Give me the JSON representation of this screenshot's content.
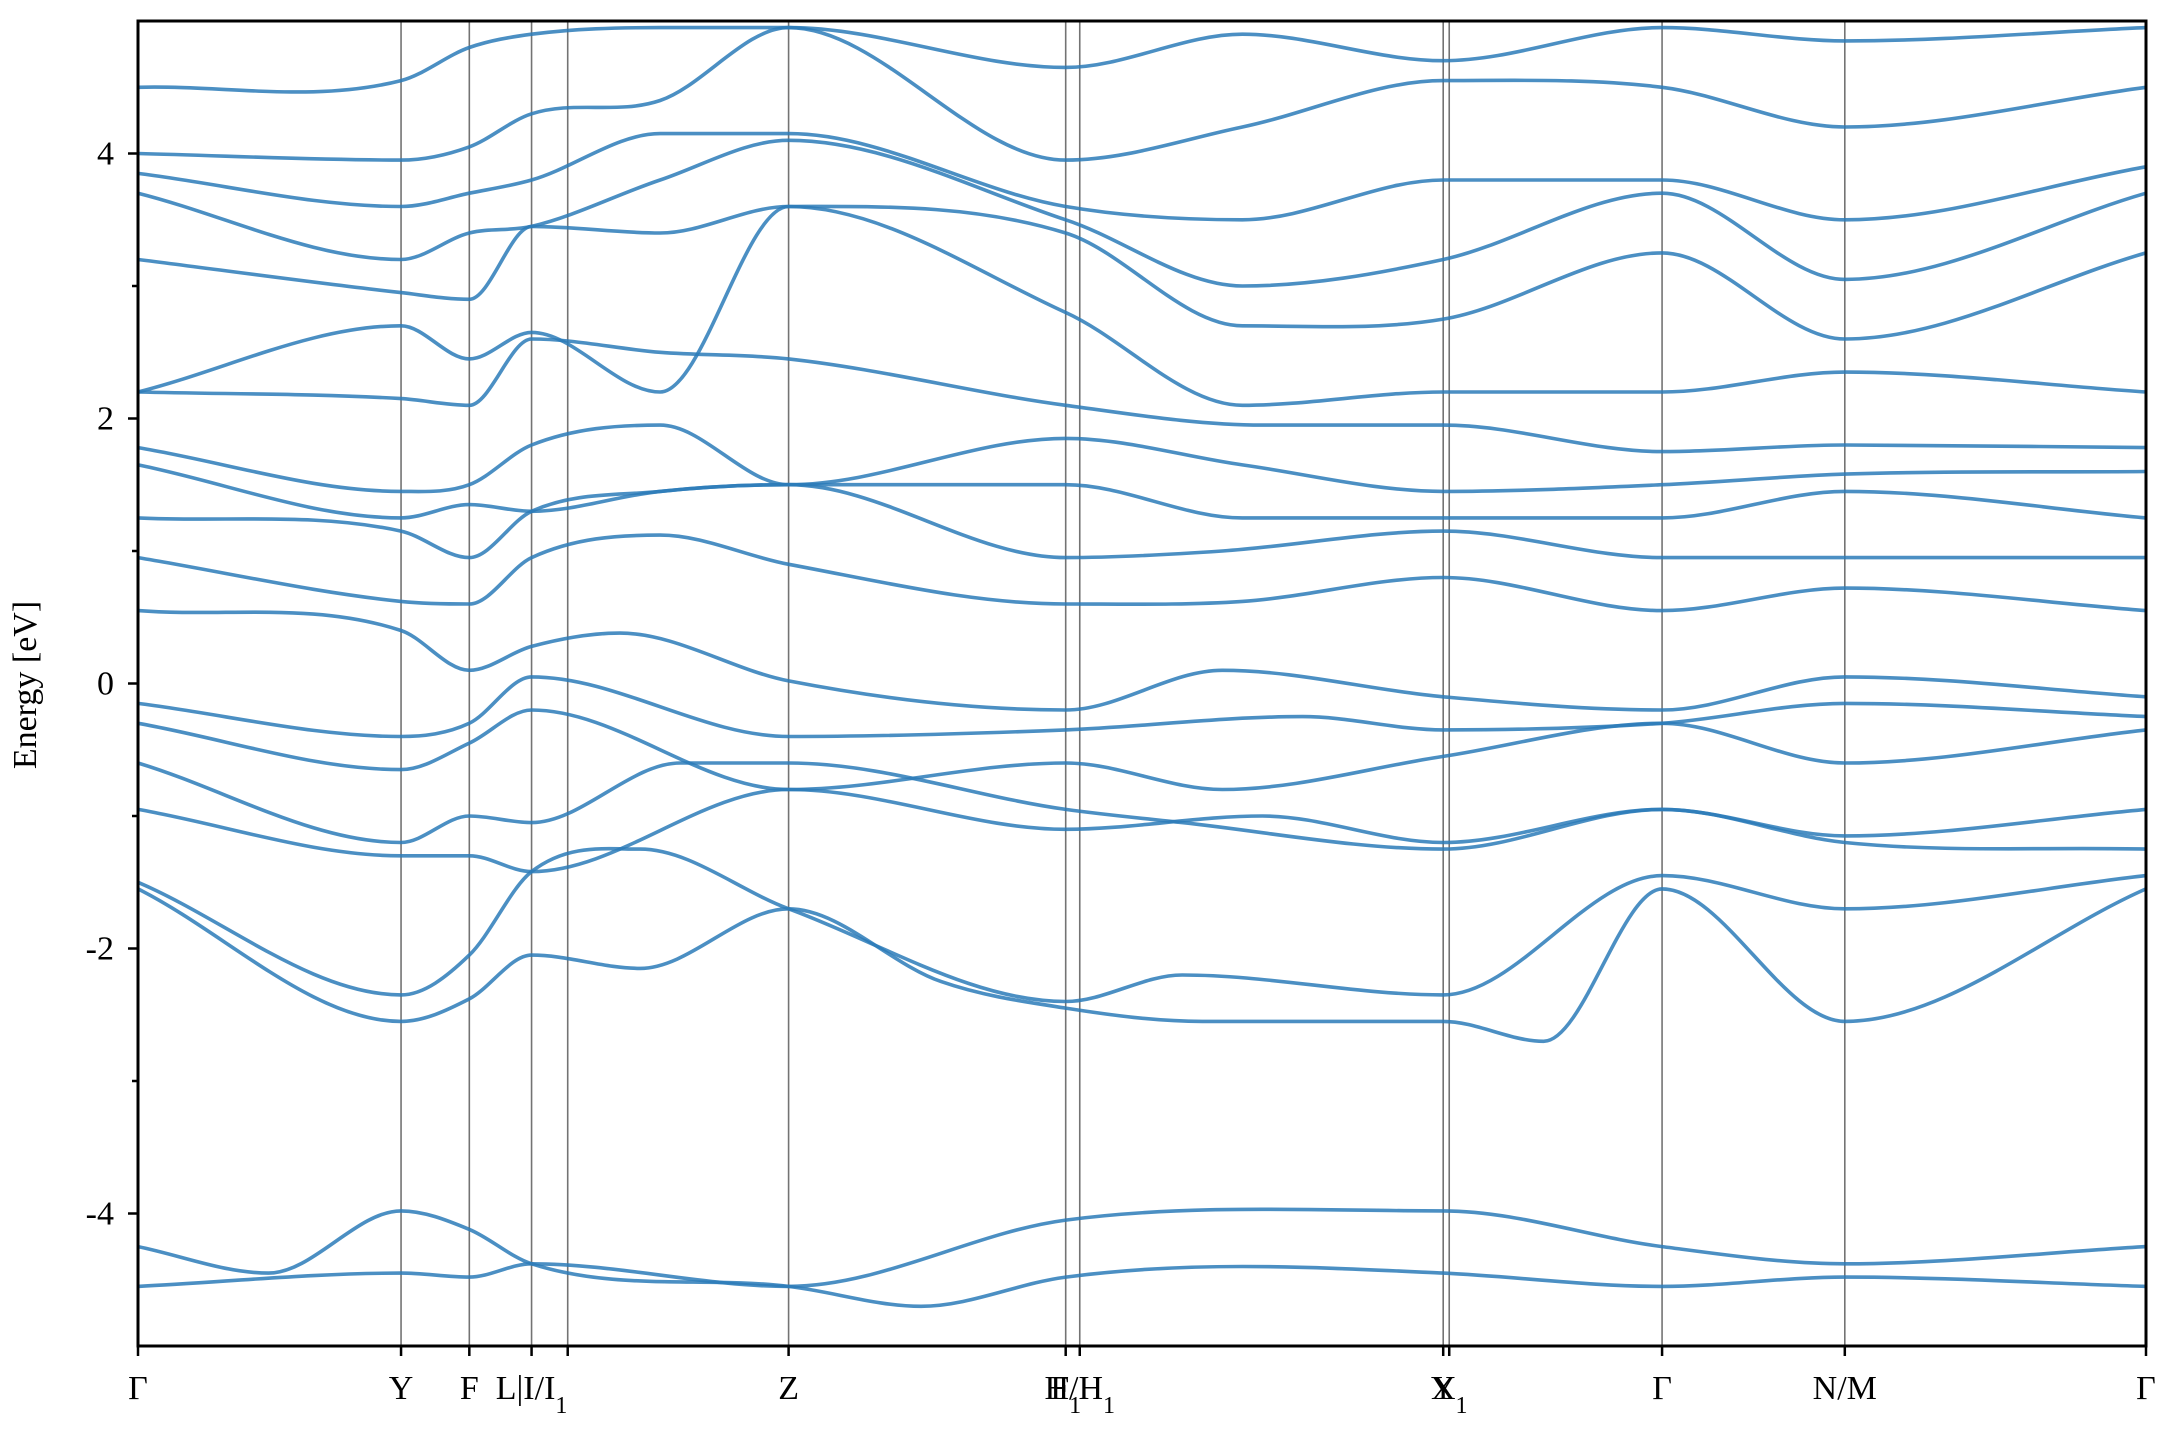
{
  "chart_data": {
    "type": "line",
    "title": "",
    "xlabel": "",
    "ylabel": "Energy [eV]",
    "ylim": [
      -5,
      5
    ],
    "xlim": [
      0,
      10
    ],
    "grid": false,
    "line_color": "#2b7bb9",
    "y_ticks": [
      {
        "value": -4,
        "label": "-4"
      },
      {
        "value": -2,
        "label": "-2"
      },
      {
        "value": 0,
        "label": "0"
      },
      {
        "value": 2,
        "label": "2"
      },
      {
        "value": 4,
        "label": "4"
      }
    ],
    "y_minor_ticks": [
      -3,
      -1,
      1,
      3
    ],
    "high_symmetry_points": [
      {
        "x": 0.0,
        "label": "Γ",
        "sub": ""
      },
      {
        "x": 1.31,
        "label": "Y",
        "sub": ""
      },
      {
        "x": 1.65,
        "label": "F",
        "sub": ""
      },
      {
        "x": 1.96,
        "label": "L|I/I",
        "sub": "1"
      },
      {
        "x": 2.14,
        "label": "",
        "sub": ""
      },
      {
        "x": 3.24,
        "label": "Z",
        "sub": ""
      },
      {
        "x": 4.62,
        "label": "F",
        "sub": "1"
      },
      {
        "x": 4.69,
        "label": "H/H",
        "sub": "1"
      },
      {
        "x": 6.5,
        "label": "Y",
        "sub": ""
      },
      {
        "x": 6.53,
        "label": "X",
        "sub": "1"
      },
      {
        "x": 7.59,
        "label": "Γ",
        "sub": ""
      },
      {
        "x": 8.5,
        "label": "N/M",
        "sub": ""
      },
      {
        "x": 10.0,
        "label": "Γ",
        "sub": ""
      }
    ],
    "series": [
      {
        "x": [
          0,
          1.31,
          1.65,
          1.96,
          3.24,
          4.62,
          6.5,
          7.59,
          8.5,
          10
        ],
        "values": [
          -4.55,
          -4.45,
          -4.48,
          -4.38,
          -4.55,
          -4.05,
          -3.98,
          -4.25,
          -4.38,
          -4.25
        ]
      },
      {
        "x": [
          0,
          0.65,
          1.31,
          1.65,
          1.96,
          3.24,
          3.9,
          4.62,
          5.5,
          6.5,
          7.59,
          8.5,
          10
        ],
        "values": [
          -4.25,
          -4.45,
          -3.98,
          -4.12,
          -4.38,
          -4.55,
          -4.7,
          -4.48,
          -4.4,
          -4.45,
          -4.55,
          -4.48,
          -4.55
        ]
      },
      {
        "x": [
          0,
          1.31,
          1.65,
          1.96,
          2.5,
          3.24,
          4.62,
          5.2,
          6.5,
          7.59,
          8.5,
          10
        ],
        "values": [
          -1.5,
          -2.35,
          -2.05,
          -1.42,
          -1.25,
          -1.7,
          -2.4,
          -2.2,
          -2.35,
          -1.45,
          -1.7,
          -1.45
        ]
      },
      {
        "x": [
          0,
          1.31,
          1.65,
          1.96,
          2.5,
          3.24,
          4.0,
          4.62,
          5.3,
          6.5,
          7.0,
          7.59,
          8.5,
          10
        ],
        "values": [
          -1.55,
          -2.55,
          -2.38,
          -2.05,
          -2.15,
          -1.7,
          -2.25,
          -2.45,
          -2.55,
          -2.55,
          -2.7,
          -1.55,
          -2.55,
          -1.55
        ]
      },
      {
        "x": [
          0,
          1.31,
          1.65,
          1.96,
          3.24,
          4.62,
          5.6,
          6.5,
          7.59,
          8.5,
          10
        ],
        "values": [
          -0.95,
          -1.3,
          -1.3,
          -1.42,
          -0.8,
          -1.1,
          -1.0,
          -1.2,
          -0.95,
          -1.15,
          -0.95
        ]
      },
      {
        "x": [
          0,
          1.31,
          1.65,
          1.96,
          2.7,
          3.24,
          4.62,
          5.2,
          6.5,
          7.59,
          8.5,
          10
        ],
        "values": [
          -0.6,
          -1.2,
          -1.0,
          -1.05,
          -0.6,
          -0.6,
          -0.95,
          -1.05,
          -1.25,
          -0.95,
          -1.2,
          -1.25
        ]
      },
      {
        "x": [
          0,
          1.31,
          1.65,
          1.96,
          3.24,
          4.62,
          5.4,
          6.5,
          7.59,
          8.5,
          10
        ],
        "values": [
          -0.3,
          -0.65,
          -0.45,
          -0.2,
          -0.8,
          -0.6,
          -0.8,
          -0.55,
          -0.3,
          -0.6,
          -0.35
        ]
      },
      {
        "x": [
          0,
          1.31,
          1.65,
          1.96,
          3.24,
          4.62,
          5.8,
          6.5,
          7.59,
          8.5,
          10
        ],
        "values": [
          -0.15,
          -0.4,
          -0.3,
          0.05,
          -0.4,
          -0.35,
          -0.25,
          -0.35,
          -0.3,
          -0.15,
          -0.25
        ]
      },
      {
        "x": [
          0,
          1.31,
          1.65,
          1.96,
          2.4,
          3.24,
          4.62,
          5.4,
          6.5,
          7.59,
          8.5,
          10
        ],
        "values": [
          0.55,
          0.4,
          0.1,
          0.28,
          0.38,
          0.02,
          -0.2,
          0.1,
          -0.1,
          -0.2,
          0.05,
          -0.1
        ]
      },
      {
        "x": [
          0,
          1.31,
          1.65,
          1.96,
          2.6,
          3.24,
          4.62,
          5.5,
          6.5,
          7.59,
          8.5,
          10
        ],
        "values": [
          0.95,
          0.62,
          0.6,
          0.95,
          1.12,
          0.9,
          0.6,
          0.62,
          0.8,
          0.55,
          0.72,
          0.55
        ]
      },
      {
        "x": [
          0,
          1.31,
          1.65,
          1.96,
          2.6,
          3.24,
          4.62,
          5.4,
          6.5,
          7.59,
          8.5,
          10
        ],
        "values": [
          1.25,
          1.15,
          0.95,
          1.3,
          1.45,
          1.5,
          0.95,
          1.0,
          1.15,
          0.95,
          0.95,
          0.95
        ]
      },
      {
        "x": [
          0,
          1.31,
          1.65,
          1.96,
          2.6,
          3.24,
          4.62,
          5.5,
          6.5,
          7.59,
          8.5,
          10
        ],
        "values": [
          1.65,
          1.25,
          1.35,
          1.3,
          1.45,
          1.5,
          1.5,
          1.25,
          1.25,
          1.25,
          1.45,
          1.25
        ]
      },
      {
        "x": [
          0,
          1.31,
          1.65,
          1.96,
          2.6,
          3.24,
          4.62,
          5.5,
          6.5,
          7.59,
          8.5,
          10
        ],
        "values": [
          1.78,
          1.45,
          1.5,
          1.8,
          1.95,
          1.5,
          1.85,
          1.65,
          1.45,
          1.5,
          1.58,
          1.6
        ]
      },
      {
        "x": [
          0,
          1.31,
          1.65,
          1.96,
          2.6,
          3.24,
          4.62,
          5.6,
          6.5,
          7.59,
          8.5,
          10
        ],
        "values": [
          2.2,
          2.15,
          2.1,
          2.6,
          2.5,
          2.45,
          2.1,
          1.95,
          1.95,
          1.75,
          1.8,
          1.78
        ]
      },
      {
        "x": [
          0,
          1.31,
          1.65,
          1.96,
          2.6,
          3.24,
          4.62,
          5.5,
          6.5,
          7.59,
          8.5,
          10
        ],
        "values": [
          2.2,
          2.7,
          2.45,
          2.65,
          2.2,
          3.6,
          2.8,
          2.1,
          2.2,
          2.2,
          2.35,
          2.2
        ]
      },
      {
        "x": [
          0,
          1.31,
          1.65,
          1.96,
          2.6,
          3.24,
          4.62,
          5.5,
          6.5,
          7.59,
          8.5,
          10
        ],
        "values": [
          3.2,
          2.95,
          2.9,
          3.45,
          3.4,
          3.6,
          3.4,
          2.7,
          2.75,
          3.25,
          2.6,
          3.25
        ]
      },
      {
        "x": [
          0,
          1.31,
          1.65,
          1.96,
          2.6,
          3.24,
          4.62,
          5.5,
          6.5,
          7.59,
          8.5,
          10
        ],
        "values": [
          3.7,
          3.2,
          3.4,
          3.45,
          3.8,
          4.1,
          3.5,
          3.0,
          3.2,
          3.7,
          3.05,
          3.7
        ]
      },
      {
        "x": [
          0,
          1.31,
          1.65,
          1.96,
          2.6,
          3.24,
          4.62,
          5.5,
          6.5,
          7.59,
          8.5,
          10
        ],
        "values": [
          3.85,
          3.6,
          3.7,
          3.8,
          4.15,
          4.15,
          3.6,
          3.5,
          3.8,
          3.8,
          3.5,
          3.9
        ]
      },
      {
        "x": [
          0,
          1.31,
          1.65,
          1.96,
          2.6,
          3.24,
          4.62,
          5.5,
          6.5,
          7.59,
          8.5,
          10
        ],
        "values": [
          4.0,
          3.95,
          4.05,
          4.3,
          4.4,
          4.95,
          3.95,
          4.2,
          4.55,
          4.5,
          4.2,
          4.5
        ]
      },
      {
        "x": [
          0,
          1.31,
          1.65,
          1.96,
          2.6,
          3.24,
          4.62,
          5.5,
          6.5,
          7.59,
          8.5,
          10
        ],
        "values": [
          4.5,
          4.55,
          4.8,
          4.9,
          4.95,
          4.95,
          4.65,
          4.9,
          4.7,
          4.95,
          4.85,
          4.95
        ]
      }
    ]
  }
}
